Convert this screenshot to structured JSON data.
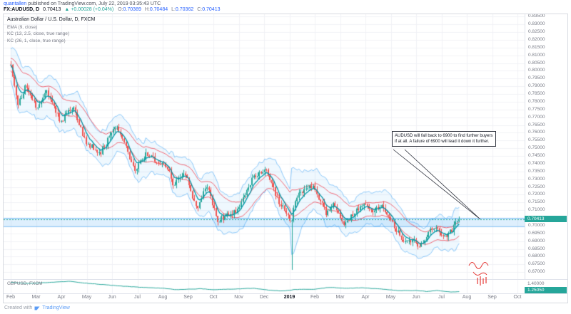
{
  "header": {
    "byline_user": "quantallen",
    "byline_rest": " published on TradingView.com, July 22, 2019 03:35:43 UTC",
    "symbol": "FX:AUDUSD, D",
    "last": "0.70413",
    "change": "▲ +0.00028 (+0.04%)",
    "o_label": "O:",
    "o_value": "0.70389",
    "h_label": "H:",
    "h_value": "0.70484",
    "l_label": "L:",
    "l_value": "0.70362",
    "c_label": "C:",
    "c_value": "0.70413"
  },
  "legend": {
    "title": "Australian Dollar / U.S. Dollar, D, FXCM",
    "indicators": [
      "EMA (9, close)",
      "KC (13, 2.5, close, true range)",
      "KC (26, 1, close, true range)"
    ]
  },
  "annotation": {
    "text": "AUDUSD will fall back to 6900 to find further buyers if at all. A failure of 6900 will lead it down it further."
  },
  "sub_panel": {
    "label": "GBPUSD, FXCM",
    "axis_label": "1.40000",
    "badge": "1.25050"
  },
  "footer": {
    "created_with": "Created with",
    "brand": "TradingView"
  },
  "colors": {
    "up": "#26a69a",
    "down": "#ef5350",
    "ema": "#0097a7",
    "kc_outer": "#2196f3",
    "kc_inner": "#f23645",
    "badge": "#26a69a",
    "accent": "#2962ff"
  },
  "chart_data": [
    {
      "type": "candlestick",
      "title": "Australian Dollar / U.S. Dollar, D, FXCM",
      "timeframe": "D",
      "x_labels": [
        "Feb",
        "Mar",
        "Apr",
        "May",
        "Jun",
        "Jul",
        "Aug",
        "Sep",
        "Oct",
        "Nov",
        "Dec",
        "2019",
        "Feb",
        "Mar",
        "Apr",
        "May",
        "Jun",
        "Jul",
        "Aug",
        "Sep",
        "Oct"
      ],
      "y_axis": {
        "min": 0.6655,
        "max": 0.8365,
        "tick_step": 0.005,
        "decimals": 5
      },
      "open": 0.70389,
      "high": 0.70484,
      "low": 0.70362,
      "close": 0.70413,
      "last_price": 0.70413,
      "last_price_label": "0.70413",
      "change_text": "+0.00028 (+0.04%)",
      "flash_crash_month": 11.07,
      "flash_crash_low": 0.6715,
      "highlight_zone": [
        0.6995,
        0.705
      ],
      "anchors": [
        [
          0,
          0.8035
        ],
        [
          0.3,
          0.778
        ],
        [
          0.6,
          0.7915
        ],
        [
          1.0,
          0.776
        ],
        [
          1.45,
          0.7865
        ],
        [
          1.95,
          0.767
        ],
        [
          2.45,
          0.7765
        ],
        [
          3.0,
          0.753
        ],
        [
          3.55,
          0.7475
        ],
        [
          4.2,
          0.765
        ],
        [
          4.9,
          0.7345
        ],
        [
          5.3,
          0.746
        ],
        [
          6.15,
          0.739
        ],
        [
          6.4,
          0.7265
        ],
        [
          6.9,
          0.734
        ],
        [
          7.35,
          0.71
        ],
        [
          7.75,
          0.7265
        ],
        [
          8.15,
          0.7035
        ],
        [
          8.9,
          0.709
        ],
        [
          9.55,
          0.73
        ],
        [
          10.05,
          0.7365
        ],
        [
          10.55,
          0.7165
        ],
        [
          11.0,
          0.7045
        ],
        [
          11.07,
          0.6995
        ],
        [
          11.15,
          0.712
        ],
        [
          11.35,
          0.7215
        ],
        [
          11.95,
          0.7255
        ],
        [
          12.45,
          0.708
        ],
        [
          12.75,
          0.7135
        ],
        [
          13.15,
          0.7
        ],
        [
          13.85,
          0.7145
        ],
        [
          14.3,
          0.7095
        ],
        [
          14.65,
          0.7135
        ],
        [
          15.1,
          0.7005
        ],
        [
          15.55,
          0.688
        ],
        [
          15.9,
          0.6905
        ],
        [
          16.15,
          0.6855
        ],
        [
          16.55,
          0.6965
        ],
        [
          16.8,
          0.6975
        ],
        [
          17.1,
          0.6925
        ],
        [
          17.4,
          0.697
        ],
        [
          17.7,
          0.70413
        ]
      ],
      "indicators": [
        "EMA (9, close)",
        "KC (13, 2.5, close, true range)",
        "KC (26, 1, close, true range)"
      ]
    },
    {
      "type": "line",
      "title": "GBPUSD, FXCM",
      "y_axis": {
        "min": 1.22,
        "max": 1.46
      },
      "axis_label_value": 1.4,
      "last_price": 1.2505,
      "anchors": [
        [
          0,
          1.419
        ],
        [
          0.5,
          1.397
        ],
        [
          1,
          1.4
        ],
        [
          2.3,
          1.434
        ],
        [
          3,
          1.4
        ],
        [
          4,
          1.362
        ],
        [
          5,
          1.33
        ],
        [
          5.5,
          1.32
        ],
        [
          6,
          1.312
        ],
        [
          6.5,
          1.285
        ],
        [
          7.5,
          1.302
        ],
        [
          8,
          1.284
        ],
        [
          9,
          1.3
        ],
        [
          9.6,
          1.31
        ],
        [
          10.3,
          1.27
        ],
        [
          10.8,
          1.262
        ],
        [
          11.2,
          1.288
        ],
        [
          12,
          1.293
        ],
        [
          12.6,
          1.327
        ],
        [
          13.2,
          1.31
        ],
        [
          13.9,
          1.318
        ],
        [
          14.5,
          1.3
        ],
        [
          15.3,
          1.268
        ],
        [
          16,
          1.27
        ],
        [
          16.4,
          1.254
        ],
        [
          16.8,
          1.27
        ],
        [
          17.2,
          1.249
        ],
        [
          17.5,
          1.244
        ],
        [
          17.7,
          1.2505
        ]
      ]
    }
  ]
}
